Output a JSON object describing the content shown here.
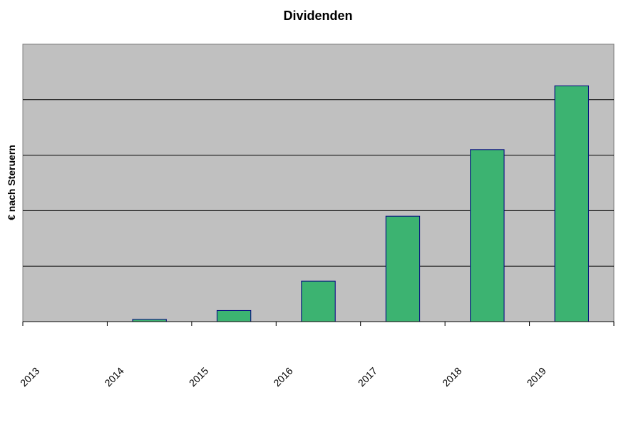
{
  "chart_data": {
    "type": "bar",
    "title": "Dividenden",
    "xlabel": "",
    "ylabel": "€ nach Steruern",
    "categories": [
      "2013",
      "2014",
      "2015",
      "2016",
      "2017",
      "2018",
      "2019"
    ],
    "values": [
      0,
      0.04,
      0.2,
      0.73,
      1.9,
      3.1,
      4.25
    ],
    "ylim": [
      0,
      5
    ],
    "grid": true,
    "legend": "none",
    "colors": {
      "plot_background": "#c0c0c0",
      "bar_fill": "#3cb371",
      "bar_stroke": "#000080",
      "gridline": "#000000"
    }
  }
}
